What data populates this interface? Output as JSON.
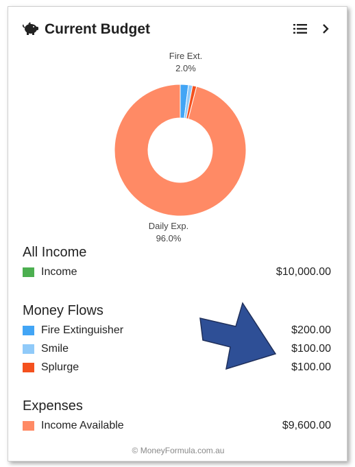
{
  "header": {
    "title": "Current Budget",
    "icon": "piggy-bank-icon",
    "list_icon": "list-icon",
    "next_icon": "chevron-right-icon"
  },
  "chart_data": {
    "type": "pie",
    "variant": "donut",
    "slices": [
      {
        "label": "Fire Ext.",
        "value": 2.0,
        "display": "2.0%",
        "color": "#42a5f5",
        "labeled": true
      },
      {
        "label": "Smile",
        "value": 1.0,
        "color": "#90caf9",
        "labeled": false
      },
      {
        "label": "Splurge",
        "value": 1.0,
        "color": "#f4511e",
        "labeled": false
      },
      {
        "label": "Daily Exp.",
        "value": 96.0,
        "display": "96.0%",
        "color": "#ff8a65",
        "labeled": true
      }
    ]
  },
  "sections": [
    {
      "title": "All Income",
      "items": [
        {
          "label": "Income",
          "amount": "$10,000.00",
          "color": "#4caf50"
        }
      ]
    },
    {
      "title": "Money Flows",
      "items": [
        {
          "label": "Fire Extinguisher",
          "amount": "$200.00",
          "color": "#42a5f5"
        },
        {
          "label": "Smile",
          "amount": "$100.00",
          "color": "#90caf9"
        },
        {
          "label": "Splurge",
          "amount": "$100.00",
          "color": "#f4511e"
        }
      ]
    },
    {
      "title": "Expenses",
      "items": [
        {
          "label": "Income Available",
          "amount": "$9,600.00",
          "color": "#ff8a65"
        }
      ]
    }
  ],
  "footer": {
    "text": "© MoneyFormula.com.au"
  },
  "annotation": {
    "arrow_color": "#2e4f96"
  }
}
